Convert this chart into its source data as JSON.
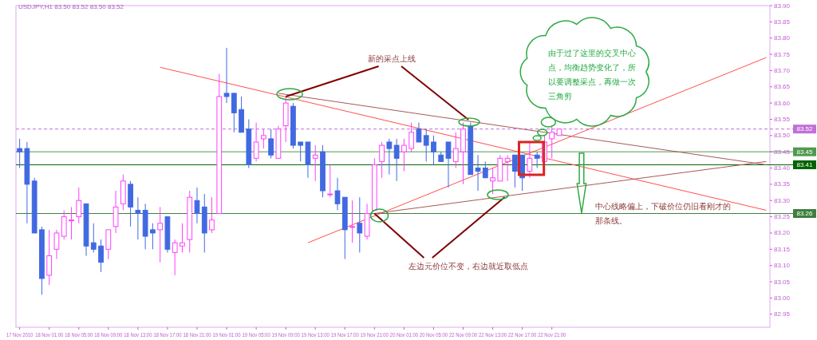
{
  "chart_data": {
    "type": "candlestick",
    "title": "USDJPY,H1 83.50 83.52 83.50 83.52",
    "categories": [
      "17 Nov 2010",
      null,
      null,
      null,
      "18 Nov 01:00",
      null,
      null,
      null,
      "18 Nov 05:00",
      null,
      null,
      null,
      "18 Nov 09:00",
      null,
      null,
      null,
      "18 Nov 13:00",
      null,
      null,
      null,
      "18 Nov 17:00",
      null,
      null,
      null,
      "18 Nov 21:00",
      null,
      null,
      null,
      "19 Nov 01:00",
      null,
      null,
      null,
      "19 Nov 05:00",
      null,
      null,
      null,
      "19 Nov 09:00",
      null,
      null,
      null,
      "19 Nov 13:00",
      null,
      null,
      null,
      "19 Nov 17:00",
      null,
      null,
      null,
      "19 Nov 21:00",
      null,
      null,
      null,
      "20 Nov 01:00",
      null,
      null,
      null,
      "20 Nov 05:00",
      null,
      null,
      null,
      "22 Nov 09:00",
      null,
      null,
      null,
      "22 Nov 13:00",
      null,
      null,
      null,
      "22 Nov 17:00",
      null,
      null,
      null,
      "22 Nov 21:00",
      null,
      null,
      null,
      null,
      null,
      null,
      null,
      null,
      null,
      null,
      null,
      null,
      null,
      null,
      null,
      null,
      null,
      null,
      null,
      null,
      null,
      null,
      null,
      null,
      null,
      null,
      null,
      null,
      null
    ],
    "ohlc": [
      [
        83.46,
        83.49,
        83.4,
        83.45
      ],
      [
        83.46,
        83.48,
        83.23,
        83.35
      ],
      [
        83.36,
        83.37,
        83.2,
        83.2
      ],
      [
        83.21,
        83.22,
        83.01,
        83.06
      ],
      [
        83.07,
        83.21,
        83.04,
        83.13
      ],
      [
        83.15,
        83.21,
        83.12,
        83.2
      ],
      [
        83.19,
        83.27,
        83.18,
        83.25
      ],
      [
        83.24,
        83.28,
        83.18,
        83.24
      ],
      [
        83.25,
        83.34,
        83.23,
        83.3
      ],
      [
        83.29,
        83.29,
        83.13,
        83.16
      ],
      [
        83.17,
        83.23,
        83.14,
        83.15
      ],
      [
        83.16,
        83.18,
        83.08,
        83.11
      ],
      [
        83.15,
        83.21,
        83.12,
        83.21
      ],
      [
        83.22,
        83.33,
        83.2,
        83.28
      ],
      [
        83.29,
        83.38,
        83.27,
        83.36
      ],
      [
        83.35,
        83.36,
        83.22,
        83.28
      ],
      [
        83.27,
        83.31,
        83.18,
        83.26
      ],
      [
        83.27,
        83.29,
        83.15,
        83.19
      ],
      [
        83.21,
        83.23,
        83.15,
        83.2
      ],
      [
        83.21,
        83.28,
        83.11,
        83.23
      ],
      [
        83.25,
        83.25,
        83.14,
        83.15
      ],
      [
        83.14,
        83.18,
        83.07,
        83.17
      ],
      [
        83.16,
        83.23,
        83.14,
        83.17
      ],
      [
        83.18,
        83.33,
        83.14,
        83.31
      ],
      [
        83.3,
        83.34,
        83.23,
        83.26
      ],
      [
        83.28,
        83.32,
        83.14,
        83.2
      ],
      [
        83.21,
        83.31,
        83.2,
        83.24
      ],
      [
        83.26,
        83.69,
        83.26,
        83.62
      ],
      [
        83.63,
        83.77,
        83.6,
        83.62
      ],
      [
        83.63,
        83.63,
        83.51,
        83.57
      ],
      [
        83.58,
        83.62,
        83.51,
        83.51
      ],
      [
        83.52,
        83.55,
        83.4,
        83.41
      ],
      [
        83.43,
        83.54,
        83.42,
        83.48
      ],
      [
        83.49,
        83.52,
        83.46,
        83.5
      ],
      [
        83.49,
        83.52,
        83.43,
        83.44
      ],
      [
        83.43,
        83.53,
        83.43,
        83.52
      ],
      [
        83.53,
        83.62,
        83.48,
        83.6
      ],
      [
        83.59,
        83.6,
        83.46,
        83.47
      ],
      [
        83.48,
        83.48,
        83.42,
        83.47
      ],
      [
        83.48,
        83.48,
        83.37,
        83.41
      ],
      [
        83.43,
        83.47,
        83.36,
        83.44
      ],
      [
        83.45,
        83.47,
        83.31,
        83.33
      ],
      [
        83.32,
        83.41,
        83.31,
        83.32
      ],
      [
        83.33,
        83.37,
        83.27,
        83.29
      ],
      [
        83.31,
        83.31,
        83.12,
        83.21
      ],
      [
        83.22,
        83.3,
        83.17,
        83.22
      ],
      [
        83.23,
        83.31,
        83.14,
        83.2
      ],
      [
        83.19,
        83.29,
        83.18,
        83.26
      ],
      [
        83.27,
        83.43,
        83.27,
        83.41
      ],
      [
        83.42,
        83.48,
        83.37,
        83.47
      ],
      [
        83.48,
        83.49,
        83.38,
        83.46
      ],
      [
        83.47,
        83.49,
        83.36,
        83.43
      ],
      [
        83.45,
        83.49,
        83.39,
        83.47
      ],
      [
        83.46,
        83.54,
        83.45,
        83.51
      ],
      [
        83.52,
        83.54,
        83.48,
        83.48
      ],
      [
        83.5,
        83.52,
        83.42,
        83.47
      ],
      [
        83.48,
        83.5,
        83.41,
        83.45
      ],
      [
        83.44,
        83.45,
        83.42,
        83.42
      ],
      [
        83.48,
        83.48,
        83.34,
        83.43
      ],
      [
        83.42,
        83.51,
        83.4,
        83.46
      ],
      [
        83.45,
        83.54,
        83.35,
        83.52
      ],
      [
        83.53,
        83.54,
        83.38,
        83.38
      ],
      [
        83.4,
        83.44,
        83.33,
        83.39
      ],
      [
        83.4,
        83.42,
        83.37,
        83.37
      ],
      [
        83.36,
        83.4,
        83.32,
        83.37
      ],
      [
        83.36,
        83.44,
        83.36,
        83.43
      ],
      [
        83.42,
        83.44,
        83.36,
        83.43
      ],
      [
        83.44,
        83.44,
        83.34,
        83.39
      ],
      [
        83.44,
        83.44,
        83.33,
        83.37
      ],
      [
        83.39,
        83.48,
        83.37,
        83.43
      ],
      [
        83.44,
        83.45,
        83.4,
        83.43
      ],
      [
        83.42,
        83.5,
        83.42,
        83.48
      ],
      [
        83.49,
        83.53,
        83.43,
        83.51
      ],
      [
        83.5,
        83.52,
        83.5,
        83.52
      ],
      null,
      null,
      null,
      null,
      null,
      null,
      null,
      null,
      null,
      null,
      null,
      null,
      null,
      null,
      null,
      null,
      null,
      null,
      null,
      null,
      null,
      null,
      null,
      null,
      null,
      null,
      null,
      null
    ],
    "colors": [
      "#4169e1",
      "#4169e1",
      "#4169e1",
      "#4169e1",
      "#ff40ff",
      "#ff40ff",
      "#ff40ff",
      "#ff40ff",
      "#ff40ff",
      "#4169e1",
      "#4169e1",
      "#4169e1",
      "#ff40ff",
      "#ff40ff",
      "#ff40ff",
      "#4169e1",
      "#4169e1",
      "#4169e1",
      "#4169e1",
      "#ff40ff",
      "#4169e1",
      "#ff40ff",
      "#ff40ff",
      "#ff40ff",
      "#4169e1",
      "#4169e1",
      "#ff40ff",
      "#ff40ff",
      "#4169e1",
      "#4169e1",
      "#4169e1",
      "#4169e1",
      "#ff40ff",
      "#ff40ff",
      "#4169e1",
      "#ff40ff",
      "#ff40ff",
      "#4169e1",
      "#4169e1",
      "#4169e1",
      "#ff40ff",
      "#4169e1",
      "#ff40ff",
      "#4169e1",
      "#4169e1",
      "#ff40ff",
      "#4169e1",
      "#ff40ff",
      "#ff40ff",
      "#ff40ff",
      "#4169e1",
      "#4169e1",
      "#ff40ff",
      "#ff40ff",
      "#4169e1",
      "#4169e1",
      "#4169e1",
      "#4169e1",
      "#4169e1",
      "#ff40ff",
      "#ff40ff",
      "#4169e1",
      "#4169e1",
      "#4169e1",
      "#ff40ff",
      "#ff40ff",
      "#ff40ff",
      "#4169e1",
      "#4169e1",
      "#ff40ff",
      "#4169e1",
      "#ff40ff",
      "#ff40ff",
      "#ff40ff",
      null,
      null,
      null,
      null,
      null,
      null,
      null,
      null,
      null,
      null,
      null,
      null,
      null,
      null,
      null,
      null,
      null,
      null,
      null,
      null,
      null,
      null,
      null,
      null,
      null,
      null,
      null,
      null
    ],
    "ylim": [
      82.91,
      83.9
    ],
    "yticks": [
      82.95,
      {
        "value": 83,
        "label": "83.00"
      },
      83.05,
      {
        "value": 83.1,
        "label": "83.10"
      },
      83.15,
      {
        "value": 83.2,
        "label": "83.20"
      },
      83.25,
      {
        "value": 83.3,
        "label": "83.30"
      },
      83.35,
      {
        "value": 83.4,
        "label": "83.40"
      },
      83.45,
      {
        "value": 83.5,
        "label": "83.50"
      },
      83.55,
      {
        "value": 83.6,
        "label": "83.60"
      },
      83.65,
      {
        "value": 83.7,
        "label": "83.70"
      },
      83.75,
      {
        "value": 83.8,
        "label": "83.80"
      },
      83.85,
      {
        "value": 83.9,
        "label": "83.90"
      }
    ],
    "series": [
      {
        "type": "line",
        "color": "#ff5050",
        "values": [
          null,
          null,
          null,
          null,
          null,
          null,
          null,
          null,
          null,
          null,
          null,
          null,
          null,
          null,
          null,
          null,
          null,
          null,
          null,
          83.71,
          null,
          null,
          null,
          null,
          null,
          null,
          null,
          null,
          null,
          null,
          null,
          null,
          null,
          null,
          null,
          null,
          null,
          null,
          null,
          null,
          null,
          null,
          null,
          null,
          null,
          null,
          null,
          null,
          null,
          null,
          null,
          null,
          null,
          null,
          null,
          null,
          null,
          null,
          null,
          null,
          null,
          null,
          null,
          null,
          null,
          null,
          null,
          null,
          null,
          null,
          null,
          null,
          null,
          null,
          null,
          null,
          null,
          null,
          null,
          null,
          null,
          null,
          null,
          null,
          null,
          null,
          null,
          null,
          null,
          null,
          null,
          null,
          null,
          null,
          null,
          null,
          null,
          null,
          null,
          null,
          null,
          83.27
        ]
      },
      {
        "type": "line",
        "color": "#a85858",
        "values": [
          null,
          null,
          null,
          null,
          null,
          null,
          null,
          null,
          null,
          null,
          null,
          null,
          null,
          null,
          null,
          null,
          null,
          null,
          null,
          null,
          null,
          null,
          null,
          null,
          null,
          null,
          null,
          null,
          null,
          null,
          null,
          null,
          null,
          null,
          null,
          83.63,
          null,
          null,
          null,
          null,
          null,
          null,
          null,
          null,
          null,
          null,
          null,
          null,
          null,
          null,
          null,
          null,
          null,
          null,
          null,
          null,
          null,
          null,
          null,
          null,
          null,
          null,
          null,
          null,
          null,
          null,
          null,
          null,
          null,
          null,
          null,
          null,
          null,
          null,
          null,
          null,
          null,
          null,
          null,
          null,
          null,
          null,
          null,
          null,
          null,
          null,
          null,
          null,
          null,
          null,
          null,
          null,
          null,
          null,
          null,
          null,
          null,
          null,
          null,
          null,
          null,
          83.41
        ]
      },
      {
        "type": "line",
        "color": "#ff5050",
        "values": [
          null,
          null,
          null,
          null,
          null,
          null,
          null,
          null,
          null,
          null,
          null,
          null,
          null,
          null,
          null,
          null,
          null,
          null,
          null,
          null,
          null,
          null,
          null,
          null,
          null,
          null,
          null,
          null,
          null,
          null,
          null,
          null,
          null,
          null,
          null,
          null,
          null,
          null,
          null,
          83.17,
          null,
          null,
          null,
          null,
          null,
          null,
          null,
          null,
          null,
          null,
          null,
          null,
          null,
          null,
          null,
          null,
          null,
          null,
          null,
          null,
          null,
          null,
          null,
          null,
          null,
          null,
          null,
          null,
          null,
          null,
          null,
          null,
          null,
          null,
          null,
          null,
          null,
          null,
          null,
          null,
          null,
          null,
          null,
          null,
          null,
          null,
          null,
          null,
          null,
          null,
          null,
          null,
          null,
          null,
          null,
          null,
          null,
          null,
          null,
          null,
          null,
          83.74
        ]
      },
      {
        "type": "line",
        "color": "#a85858",
        "values": [
          null,
          null,
          null,
          null,
          null,
          null,
          null,
          null,
          null,
          null,
          null,
          null,
          null,
          null,
          null,
          null,
          null,
          null,
          null,
          null,
          null,
          null,
          null,
          null,
          null,
          null,
          null,
          null,
          null,
          null,
          null,
          null,
          null,
          null,
          null,
          null,
          null,
          null,
          null,
          null,
          null,
          null,
          null,
          null,
          null,
          null,
          null,
          null,
          83.26,
          null,
          null,
          null,
          null,
          null,
          null,
          null,
          null,
          null,
          null,
          null,
          null,
          null,
          null,
          null,
          null,
          null,
          null,
          null,
          null,
          null,
          null,
          null,
          null,
          null,
          null,
          null,
          null,
          null,
          null,
          null,
          null,
          null,
          null,
          null,
          null,
          null,
          null,
          null,
          null,
          null,
          null,
          null,
          null,
          null,
          null,
          null,
          null,
          null,
          null,
          null,
          null,
          83.42
        ]
      }
    ],
    "ref_lines": [
      {
        "axis": "y",
        "value": 83.52,
        "label": "83.52",
        "color": "#c070d8",
        "line_style": "dashed"
      },
      {
        "axis": "y",
        "value": 83.45,
        "label": "83.45",
        "color": "#4f9a4f"
      },
      {
        "axis": "y",
        "value": 83.41,
        "label": "83.41",
        "color": "#006400"
      },
      {
        "axis": "y",
        "value": 83.26,
        "label": "83.26",
        "color": "#3f7f3f"
      }
    ],
    "annotations": [
      {
        "text": "新的采点上线",
        "x": "19 Nov 09:00",
        "y": 83.62
      },
      {
        "text": "左边元价位不变，右边就近取低点",
        "x": "19 Nov 21:00",
        "y": 83.26
      },
      "由于过了这里的交叉中心点，均衡趋势变化了，所以要调整采点，再做一次三角剪",
      "中心线略偏上，下破价位仍旧看刚才的那条线。"
    ]
  }
}
